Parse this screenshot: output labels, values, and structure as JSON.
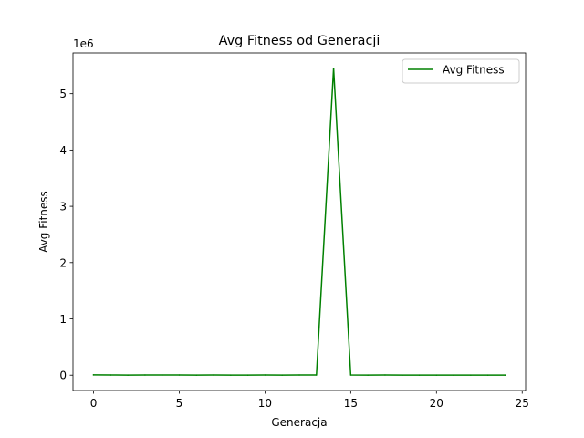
{
  "chart_data": {
    "type": "line",
    "title": "Avg Fitness od Generacji",
    "xlabel": "Generacja",
    "ylabel": "Avg Fitness",
    "y_offset_label": "1e6",
    "xlim": [
      -1.2,
      25.2
    ],
    "ylim": [
      -272000,
      5724000
    ],
    "x_ticks": [
      0,
      5,
      10,
      15,
      20,
      25
    ],
    "x_tick_labels": [
      "0",
      "5",
      "10",
      "15",
      "20",
      "25"
    ],
    "y_ticks": [
      0,
      1000000,
      2000000,
      3000000,
      4000000,
      5000000
    ],
    "y_tick_labels": [
      "0",
      "1",
      "2",
      "3",
      "4",
      "5"
    ],
    "grid": false,
    "legend_position": "top-right",
    "series": [
      {
        "name": "Avg Fitness",
        "color": "#008000",
        "x": [
          0,
          1,
          2,
          3,
          4,
          5,
          6,
          7,
          8,
          9,
          10,
          11,
          12,
          13,
          14,
          15,
          16,
          17,
          18,
          19,
          20,
          21,
          22,
          23,
          24
        ],
        "y": [
          5000,
          3000,
          2000,
          3000,
          4000,
          3000,
          2000,
          3000,
          2000,
          2000,
          3000,
          2000,
          3000,
          3000,
          5450000,
          3000,
          2000,
          3000,
          2000,
          2000,
          2000,
          2000,
          2000,
          2000,
          2000
        ]
      }
    ]
  }
}
